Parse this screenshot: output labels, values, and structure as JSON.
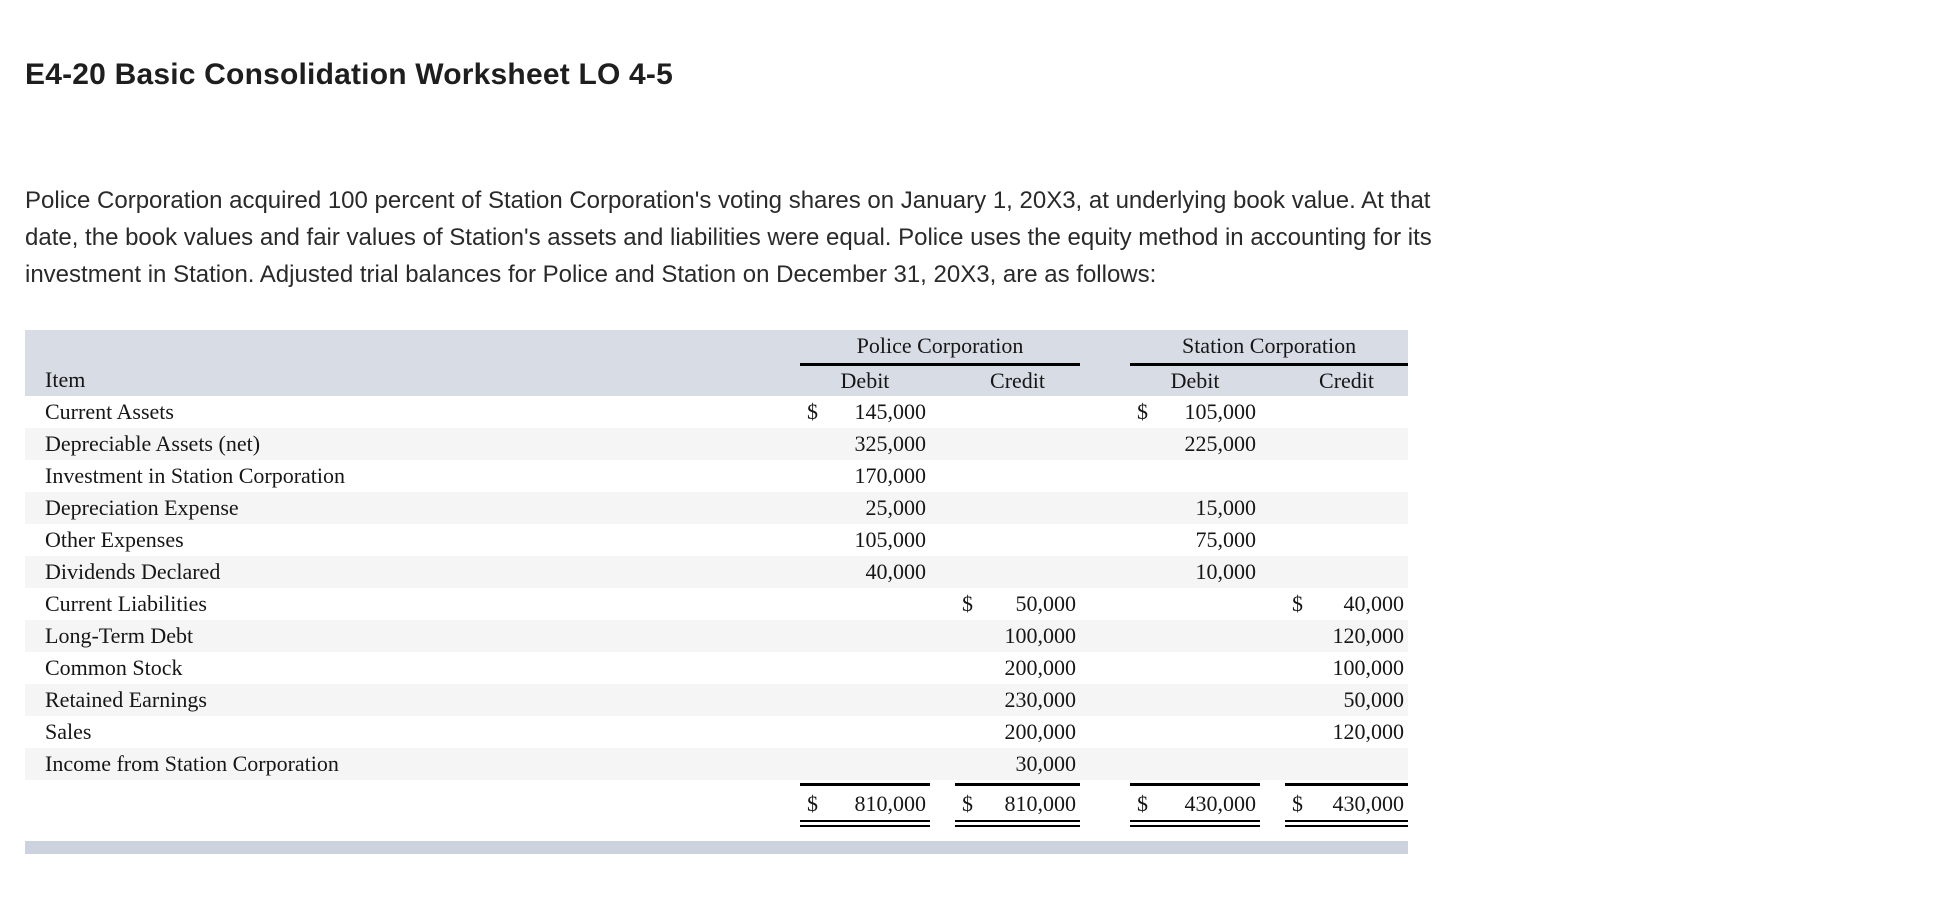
{
  "page": {
    "title": "E4-20 Basic Consolidation Worksheet LO 4-5",
    "intro_lines": [
      "Police Corporation acquired 100 percent of Station Corporation's voting shares on January 1, 20X3, at underlying book value. At that",
      "date, the book values and fair values of Station's assets and liabilities were equal. Police uses the equity method in accounting for its",
      "investment in Station. Adjusted trial balances for Police and Station on December 31, 20X3, are as follows:"
    ]
  },
  "colors": {
    "header_bg": "#d8dce5",
    "stripe_bg": "#f5f5f6",
    "footer_bar_bg": "#ccd3df",
    "rule": "#000000"
  },
  "table": {
    "item_header": "Item",
    "group_headers": {
      "police": "Police Corporation",
      "station": "Station Corporation"
    },
    "col_headers": {
      "pd": "Debit",
      "pc": "Credit",
      "sd": "Debit",
      "sc": "Credit"
    },
    "rows": [
      {
        "item": "Current Assets",
        "cells": [
          {
            "d": "$",
            "v": "145,000"
          },
          {},
          {
            "d": "$",
            "v": "105,000"
          },
          {}
        ]
      },
      {
        "item": "Depreciable Assets (net)",
        "cells": [
          {
            "v": "325,000"
          },
          {},
          {
            "v": "225,000"
          },
          {}
        ]
      },
      {
        "item": "Investment in Station Corporation",
        "cells": [
          {
            "v": "170,000"
          },
          {},
          {},
          {}
        ]
      },
      {
        "item": "Depreciation Expense",
        "cells": [
          {
            "v": "25,000"
          },
          {},
          {
            "v": "15,000"
          },
          {}
        ]
      },
      {
        "item": "Other Expenses",
        "cells": [
          {
            "v": "105,000"
          },
          {},
          {
            "v": "75,000"
          },
          {}
        ]
      },
      {
        "item": "Dividends Declared",
        "cells": [
          {
            "v": "40,000"
          },
          {},
          {
            "v": "10,000"
          },
          {}
        ]
      },
      {
        "item": "Current Liabilities",
        "cells": [
          {},
          {
            "d": "$",
            "v": "50,000"
          },
          {},
          {
            "d": "$",
            "v": "40,000"
          }
        ]
      },
      {
        "item": "Long-Term Debt",
        "cells": [
          {},
          {
            "v": "100,000"
          },
          {},
          {
            "v": "120,000"
          }
        ]
      },
      {
        "item": "Common Stock",
        "cells": [
          {},
          {
            "v": "200,000"
          },
          {},
          {
            "v": "100,000"
          }
        ]
      },
      {
        "item": "Retained Earnings",
        "cells": [
          {},
          {
            "v": "230,000"
          },
          {},
          {
            "v": "50,000"
          }
        ]
      },
      {
        "item": "Sales",
        "cells": [
          {},
          {
            "v": "200,000"
          },
          {},
          {
            "v": "120,000"
          }
        ]
      },
      {
        "item": "Income from Station Corporation",
        "cells": [
          {},
          {
            "v": "30,000"
          },
          {},
          {}
        ]
      }
    ],
    "totals": {
      "cells": [
        {
          "d": "$",
          "v": "810,000"
        },
        {
          "d": "$",
          "v": "810,000"
        },
        {
          "d": "$",
          "v": "430,000"
        },
        {
          "d": "$",
          "v": "430,000"
        }
      ]
    }
  }
}
